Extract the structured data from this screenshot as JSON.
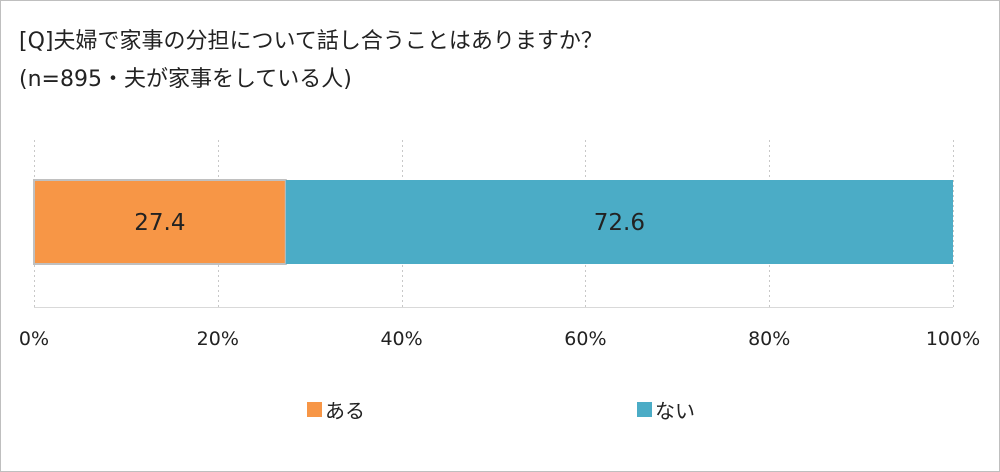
{
  "title": {
    "line1": "[Q]夫婦で家事の分担について話し合うことはありますか？",
    "line2": "(n=895・夫が家事をしている人)"
  },
  "chart_data": {
    "type": "bar",
    "orientation": "horizontal-stacked-100",
    "categories": [
      ""
    ],
    "series": [
      {
        "name": "ある",
        "values": [
          27.4
        ],
        "color": "#f79646"
      },
      {
        "name": "ない",
        "values": [
          72.6
        ],
        "color": "#4bacc6"
      }
    ],
    "xlim": [
      0,
      100
    ],
    "x_ticks": [
      "0%",
      "20%",
      "40%",
      "60%",
      "80%",
      "100%"
    ],
    "grid": true,
    "legend_position": "bottom"
  }
}
